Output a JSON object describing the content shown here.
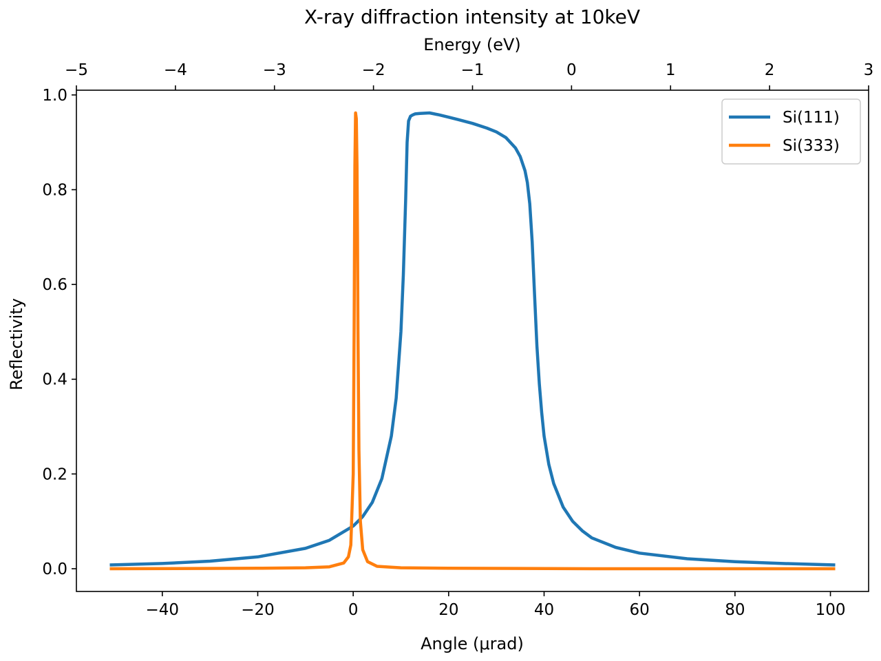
{
  "chart_data": {
    "type": "line",
    "title": "X-ray diffraction intensity at 10keV",
    "xlabel": "Angle (μrad)",
    "ylabel": "Reflectivity",
    "top_xlabel": "Energy (eV)",
    "xlim": [
      -58,
      108
    ],
    "ylim": [
      -0.048,
      1.01
    ],
    "top_xlim": [
      -5,
      3
    ],
    "grid": false,
    "legend_position": "top-right",
    "xticks": [
      -40,
      -20,
      0,
      20,
      40,
      60,
      80,
      100
    ],
    "xtick_labels": [
      "−40",
      "−20",
      "0",
      "20",
      "40",
      "60",
      "80",
      "100"
    ],
    "yticks": [
      0.0,
      0.2,
      0.4,
      0.6,
      0.8,
      1.0
    ],
    "ytick_labels": [
      "0.0",
      "0.2",
      "0.4",
      "0.6",
      "0.8",
      "1.0"
    ],
    "top_xticks": [
      -5,
      -4,
      -3,
      -2,
      -1,
      0,
      1,
      2,
      3
    ],
    "top_xtick_labels": [
      "−5",
      "−4",
      "−3",
      "−2",
      "−1",
      "0",
      "1",
      "2",
      "3"
    ],
    "series": [
      {
        "name": "Si(111)",
        "color": "#1f77b4",
        "x": [
          -51,
          -40,
          -30,
          -20,
          -10,
          -5,
          0,
          2,
          4,
          6,
          8,
          9,
          10,
          10.5,
          11,
          11.3,
          11.6,
          12,
          12.5,
          13,
          14,
          16,
          18,
          20,
          22,
          25,
          28,
          30,
          32,
          34,
          35,
          36,
          36.5,
          37,
          37.5,
          38,
          38.5,
          39,
          39.5,
          40,
          41,
          42,
          44,
          46,
          48,
          50,
          55,
          60,
          70,
          80,
          90,
          101
        ],
        "y": [
          0.008,
          0.011,
          0.016,
          0.025,
          0.043,
          0.06,
          0.09,
          0.11,
          0.14,
          0.19,
          0.28,
          0.36,
          0.5,
          0.62,
          0.78,
          0.9,
          0.945,
          0.955,
          0.958,
          0.96,
          0.961,
          0.962,
          0.958,
          0.953,
          0.948,
          0.94,
          0.93,
          0.922,
          0.91,
          0.888,
          0.87,
          0.84,
          0.815,
          0.77,
          0.69,
          0.58,
          0.47,
          0.39,
          0.33,
          0.28,
          0.22,
          0.18,
          0.13,
          0.1,
          0.08,
          0.065,
          0.045,
          0.033,
          0.021,
          0.015,
          0.011,
          0.008
        ]
      },
      {
        "name": "Si(333)",
        "color": "#ff7f0e",
        "x": [
          -51,
          -20,
          -10,
          -5,
          -2,
          -1,
          -0.5,
          0,
          0.2,
          0.35,
          0.5,
          0.65,
          0.8,
          0.9,
          1.0,
          1.2,
          1.5,
          2,
          3,
          5,
          10,
          20,
          50,
          101
        ],
        "y": [
          0.0,
          0.001,
          0.002,
          0.004,
          0.012,
          0.025,
          0.05,
          0.2,
          0.5,
          0.85,
          0.962,
          0.95,
          0.85,
          0.7,
          0.5,
          0.25,
          0.1,
          0.04,
          0.015,
          0.005,
          0.002,
          0.001,
          0.0,
          0.0
        ]
      }
    ]
  }
}
